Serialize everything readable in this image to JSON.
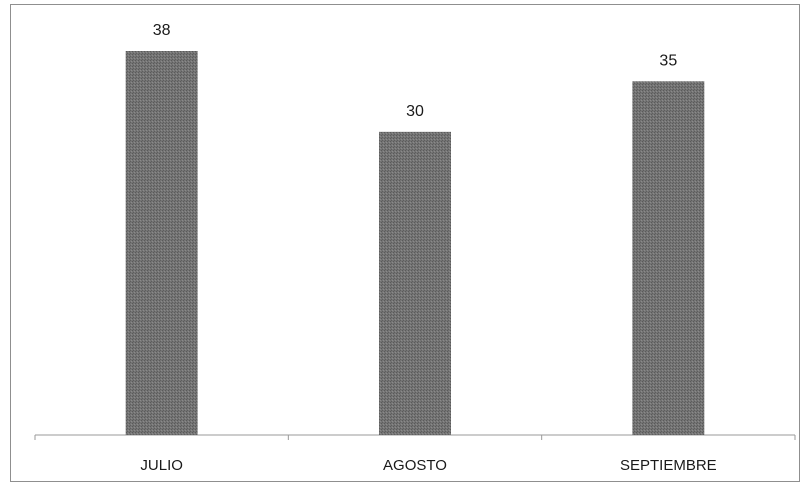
{
  "chart_data": {
    "type": "bar",
    "categories": [
      "JULIO",
      "AGOSTO",
      "SEPTIEMBRE"
    ],
    "values": [
      38,
      30,
      35
    ],
    "data_labels": [
      "38",
      "30",
      "35"
    ],
    "title": "",
    "xlabel": "",
    "ylabel": "",
    "ylim": [
      0,
      38
    ],
    "grid": false,
    "legend": "none",
    "bar_color": "#6e6e6e"
  }
}
